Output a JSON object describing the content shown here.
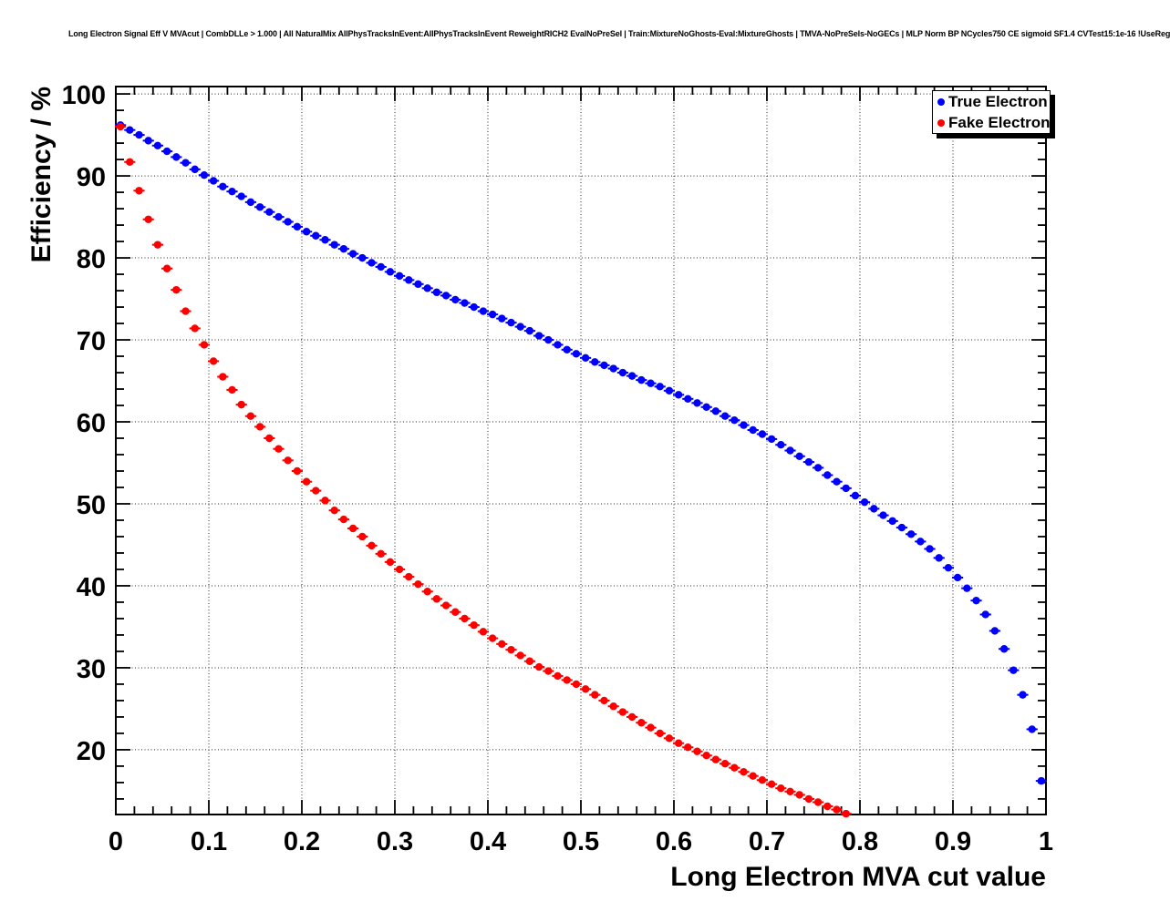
{
  "header": {
    "title": "Long Electron Signal Eff V MVAcut | CombDLLe > 1.000 | All NaturalMix AllPhysTracksInEvent:AllPhysTracksInEvent ReweightRICH2 EvalNoPreSel | Train:MixtureNoGhosts-Eval:MixtureGhosts | TMVA-NoPreSels-NoGECs | MLP Norm BP NCycles750 CE sigmoid SF1.4 CVTest15:1e-16 !UseReg"
  },
  "chart_data": {
    "type": "scatter",
    "title": "Long Electron Signal Eff V MVAcut | CombDLLe > 1.000 | All NaturalMix AllPhysTracksInEvent:AllPhysTracksInEvent ReweightRICH2 EvalNoPreSel | Train:MixtureNoGhosts-Eval:MixtureGhosts | TMVA-NoPreSels-NoGECs | MLP Norm BP NCycles750 CE sigmoid SF1.4 CVTest15:1e-16 !UseReg",
    "xlabel": "Long Electron MVA cut value",
    "ylabel": "Efficiency / %",
    "xlim": [
      0,
      1
    ],
    "ylim": [
      12.1,
      100.9
    ],
    "x_ticks": [
      0,
      0.1,
      0.2,
      0.3,
      0.4,
      0.5,
      0.6,
      0.7,
      0.8,
      0.9,
      1
    ],
    "x_tick_labels": [
      "0",
      "0.1",
      "0.2",
      "0.3",
      "0.4",
      "0.5",
      "0.6",
      "0.7",
      "0.8",
      "0.9",
      "1"
    ],
    "y_ticks": [
      20,
      30,
      40,
      50,
      60,
      70,
      80,
      90,
      100
    ],
    "y_tick_labels": [
      "20",
      "30",
      "40",
      "50",
      "60",
      "70",
      "80",
      "90",
      "100"
    ],
    "x_minor_step": 0.02,
    "y_minor_step": 2,
    "grid": true,
    "grid_style": "dotted",
    "legend_position": "top-right",
    "marker": "filled-circle-with-x-error-bar",
    "x_error": 0.005,
    "series": [
      {
        "name": "True Electron",
        "color": "#0000ff",
        "x": [
          0.005,
          0.015,
          0.025,
          0.035,
          0.045,
          0.055,
          0.065,
          0.075,
          0.085,
          0.095,
          0.105,
          0.115,
          0.125,
          0.135,
          0.145,
          0.155,
          0.165,
          0.175,
          0.185,
          0.195,
          0.205,
          0.215,
          0.225,
          0.235,
          0.245,
          0.255,
          0.265,
          0.275,
          0.285,
          0.295,
          0.305,
          0.315,
          0.325,
          0.335,
          0.345,
          0.355,
          0.365,
          0.375,
          0.385,
          0.395,
          0.405,
          0.415,
          0.425,
          0.435,
          0.445,
          0.455,
          0.465,
          0.475,
          0.485,
          0.495,
          0.505,
          0.515,
          0.525,
          0.535,
          0.545,
          0.555,
          0.565,
          0.575,
          0.585,
          0.595,
          0.605,
          0.615,
          0.625,
          0.635,
          0.645,
          0.655,
          0.665,
          0.675,
          0.685,
          0.695,
          0.705,
          0.715,
          0.725,
          0.735,
          0.745,
          0.755,
          0.765,
          0.775,
          0.785,
          0.795,
          0.805,
          0.815,
          0.825,
          0.835,
          0.845,
          0.855,
          0.865,
          0.875,
          0.885,
          0.895,
          0.905,
          0.915,
          0.925,
          0.935,
          0.945,
          0.955,
          0.965,
          0.975,
          0.985,
          0.995
        ],
        "y": [
          96.2,
          95.6,
          95.0,
          94.3,
          93.7,
          93.0,
          92.3,
          91.6,
          90.8,
          90.1,
          89.4,
          88.7,
          88.1,
          87.5,
          86.8,
          86.2,
          85.6,
          85.0,
          84.4,
          83.8,
          83.2,
          82.7,
          82.2,
          81.6,
          81.1,
          80.5,
          80.0,
          79.4,
          78.9,
          78.3,
          77.8,
          77.3,
          76.8,
          76.3,
          75.8,
          75.4,
          74.9,
          74.5,
          74.0,
          73.5,
          73.1,
          72.6,
          72.1,
          71.6,
          71.1,
          70.5,
          70.0,
          69.4,
          68.8,
          68.3,
          67.8,
          67.3,
          66.9,
          66.5,
          66.0,
          65.6,
          65.1,
          64.7,
          64.3,
          63.8,
          63.3,
          62.8,
          62.3,
          61.8,
          61.3,
          60.7,
          60.2,
          59.6,
          59.0,
          58.5,
          57.9,
          57.2,
          56.5,
          55.8,
          55.1,
          54.4,
          53.5,
          52.7,
          51.9,
          51.0,
          50.2,
          49.4,
          48.6,
          47.9,
          47.1,
          46.3,
          45.4,
          44.5,
          43.4,
          42.2,
          41.0,
          39.7,
          38.2,
          36.5,
          34.5,
          32.3,
          29.7,
          26.7,
          22.5,
          16.2
        ]
      },
      {
        "name": "Fake Electron",
        "color": "#ff0000",
        "x": [
          0.005,
          0.015,
          0.025,
          0.035,
          0.045,
          0.055,
          0.065,
          0.075,
          0.085,
          0.095,
          0.105,
          0.115,
          0.125,
          0.135,
          0.145,
          0.155,
          0.165,
          0.175,
          0.185,
          0.195,
          0.205,
          0.215,
          0.225,
          0.235,
          0.245,
          0.255,
          0.265,
          0.275,
          0.285,
          0.295,
          0.305,
          0.315,
          0.325,
          0.335,
          0.345,
          0.355,
          0.365,
          0.375,
          0.385,
          0.395,
          0.405,
          0.415,
          0.425,
          0.435,
          0.445,
          0.455,
          0.465,
          0.475,
          0.485,
          0.495,
          0.505,
          0.515,
          0.525,
          0.535,
          0.545,
          0.555,
          0.565,
          0.575,
          0.585,
          0.595,
          0.605,
          0.615,
          0.625,
          0.635,
          0.645,
          0.655,
          0.665,
          0.675,
          0.685,
          0.695,
          0.705,
          0.715,
          0.725,
          0.735,
          0.745,
          0.755,
          0.765,
          0.775,
          0.785
        ],
        "y": [
          96.0,
          91.7,
          88.2,
          84.7,
          81.6,
          78.7,
          76.1,
          73.5,
          71.4,
          69.4,
          67.4,
          65.5,
          63.9,
          62.1,
          60.7,
          59.4,
          58.0,
          56.7,
          55.3,
          54.0,
          52.7,
          51.6,
          50.4,
          49.2,
          48.1,
          47.0,
          46.0,
          44.9,
          43.9,
          42.9,
          42.0,
          41.1,
          40.2,
          39.3,
          38.4,
          37.6,
          36.8,
          36.0,
          35.2,
          34.4,
          33.6,
          32.9,
          32.2,
          31.5,
          30.8,
          30.1,
          29.6,
          29.0,
          28.5,
          28.0,
          27.4,
          26.7,
          26.0,
          25.3,
          24.6,
          24.0,
          23.3,
          22.7,
          22.0,
          21.4,
          20.8,
          20.3,
          19.8,
          19.3,
          18.8,
          18.3,
          17.8,
          17.3,
          16.8,
          16.3,
          15.8,
          15.3,
          14.9,
          14.5,
          14.0,
          13.6,
          13.1,
          12.7,
          12.2
        ]
      }
    ]
  }
}
